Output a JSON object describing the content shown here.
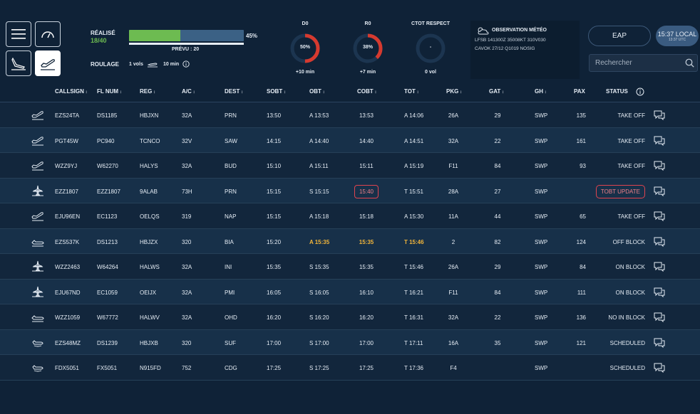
{
  "top": {
    "realise_label": "RÉALISÉ",
    "realise_value": "18/40",
    "progress_pct": "45%",
    "progress_fraction": 0.45,
    "prevu": "PRÉVU : 20",
    "roulage_label": "ROULAGE",
    "roulage_vols": "1 vols",
    "roulage_min": "10 min",
    "gauges": [
      {
        "title": "D0",
        "value": "50%",
        "fraction": 0.5,
        "sub": "+10 min",
        "color": "#d63a2f"
      },
      {
        "title": "R0",
        "value": "38%",
        "fraction": 0.38,
        "sub": "+7 min",
        "color": "#d63a2f"
      },
      {
        "title": "CTOT RESPECT",
        "value": "-",
        "fraction": 0,
        "sub": "0 vol",
        "color": "#d63a2f"
      }
    ],
    "meteo": {
      "title": "OBSERVATION MÉTÉO",
      "line1": "LFSB 141300Z 35008KT 310V030",
      "line2": "CAVOK 27/12 Q1019 NOSIG"
    },
    "eap_label": "EAP",
    "time_local": "15:37 LOCAL",
    "time_utc": "13:37 UTC",
    "search_placeholder": "Rechercher"
  },
  "columns": [
    "CALLSIGN",
    "FL NUM",
    "REG",
    "A/C",
    "DEST",
    "SOBT",
    "OBT",
    "COBT",
    "TOT",
    "PKG",
    "GAT",
    "GH",
    "PAX",
    "STATUS"
  ],
  "rows": [
    {
      "icon": "takeoff",
      "callsign": "EZS24TA",
      "flnum": "DS1185",
      "reg": "HBJXN",
      "ac": "32A",
      "dest": "PRN",
      "sobt": "13:50",
      "obt": "A 13:53",
      "cobt": "13:53",
      "tot": "A 14:06",
      "pkg": "26A",
      "gat": "29",
      "gh": "SWP",
      "pax": "135",
      "status": "TAKE OFF"
    },
    {
      "icon": "takeoff",
      "callsign": "PGT45W",
      "flnum": "PC940",
      "reg": "TCNCO",
      "ac": "32V",
      "dest": "SAW",
      "sobt": "14:15",
      "obt": "A 14:40",
      "cobt": "14:40",
      "tot": "A 14:51",
      "pkg": "32A",
      "gat": "22",
      "gh": "SWP",
      "pax": "161",
      "status": "TAKE OFF"
    },
    {
      "icon": "takeoff",
      "callsign": "WZZ9YJ",
      "flnum": "W62270",
      "reg": "HALYS",
      "ac": "32A",
      "dest": "BUD",
      "sobt": "15:10",
      "obt": "A 15:11",
      "cobt": "15:11",
      "tot": "A 15:19",
      "pkg": "F11",
      "gat": "84",
      "gh": "SWP",
      "pax": "93",
      "status": "TAKE OFF"
    },
    {
      "icon": "plane-top",
      "callsign": "EZZ1807",
      "flnum": "EZZ1807",
      "reg": "9ALAB",
      "ac": "73H",
      "dest": "PRN",
      "sobt": "15:15",
      "obt": "S 15:15",
      "cobt": "15:40",
      "tot": "T 15:51",
      "pkg": "28A",
      "gat": "27",
      "gh": "SWP",
      "pax": "",
      "status": "TOBT UPDATE",
      "cobt_alert": true,
      "status_alert": true
    },
    {
      "icon": "takeoff",
      "callsign": "EJU96EN",
      "flnum": "EC1123",
      "reg": "OELQS",
      "ac": "319",
      "dest": "NAP",
      "sobt": "15:15",
      "obt": "A 15:18",
      "cobt": "15:18",
      "tot": "A 15:30",
      "pkg": "11A",
      "gat": "44",
      "gh": "SWP",
      "pax": "65",
      "status": "TAKE OFF"
    },
    {
      "icon": "taxi",
      "callsign": "EZS537K",
      "flnum": "DS1213",
      "reg": "HBJZX",
      "ac": "320",
      "dest": "BIA",
      "sobt": "15:20",
      "obt": "A 15:35",
      "cobt": "15:35",
      "tot": "T 15:46",
      "pkg": "2",
      "gat": "82",
      "gh": "SWP",
      "pax": "124",
      "status": "OFF BLOCK",
      "highlight": true
    },
    {
      "icon": "plane-top",
      "callsign": "WZZ2463",
      "flnum": "W64264",
      "reg": "HALWS",
      "ac": "32A",
      "dest": "INI",
      "sobt": "15:35",
      "obt": "S 15:35",
      "cobt": "15:35",
      "tot": "T 15:46",
      "pkg": "26A",
      "gat": "29",
      "gh": "SWP",
      "pax": "84",
      "status": "ON BLOCK"
    },
    {
      "icon": "plane-top",
      "callsign": "EJU67ND",
      "flnum": "EC1059",
      "reg": "OEIJX",
      "ac": "32A",
      "dest": "PMI",
      "sobt": "16:05",
      "obt": "S 16:05",
      "cobt": "16:10",
      "tot": "T 16:21",
      "pkg": "F11",
      "gat": "84",
      "gh": "SWP",
      "pax": "111",
      "status": "ON BLOCK"
    },
    {
      "icon": "taxi",
      "callsign": "WZZ1059",
      "flnum": "W67772",
      "reg": "HALWV",
      "ac": "32A",
      "dest": "OHD",
      "sobt": "16:20",
      "obt": "S 16:20",
      "cobt": "16:20",
      "tot": "T 16:31",
      "pkg": "32A",
      "gat": "22",
      "gh": "SWP",
      "pax": "136",
      "status": "NO IN BLOCK"
    },
    {
      "icon": "scheduled",
      "callsign": "EZS48MZ",
      "flnum": "DS1239",
      "reg": "HBJXB",
      "ac": "320",
      "dest": "SUF",
      "sobt": "17:00",
      "obt": "S 17:00",
      "cobt": "17:00",
      "tot": "T 17:11",
      "pkg": "16A",
      "gat": "35",
      "gh": "SWP",
      "pax": "121",
      "status": "SCHEDULED"
    },
    {
      "icon": "scheduled",
      "callsign": "FDX5051",
      "flnum": "FX5051",
      "reg": "N915FD",
      "ac": "752",
      "dest": "CDG",
      "sobt": "17:25",
      "obt": "S 17:25",
      "cobt": "17:25",
      "tot": "T 17:36",
      "pkg": "F4",
      "gat": "",
      "gh": "SWP",
      "pax": "",
      "status": "SCHEDULED"
    }
  ],
  "colors": {
    "background": "#0f2237",
    "progress_fill": "#6dbb51",
    "progress_bg": "#3b6185",
    "alert": "#e0444f",
    "highlight": "#f2b53a"
  }
}
